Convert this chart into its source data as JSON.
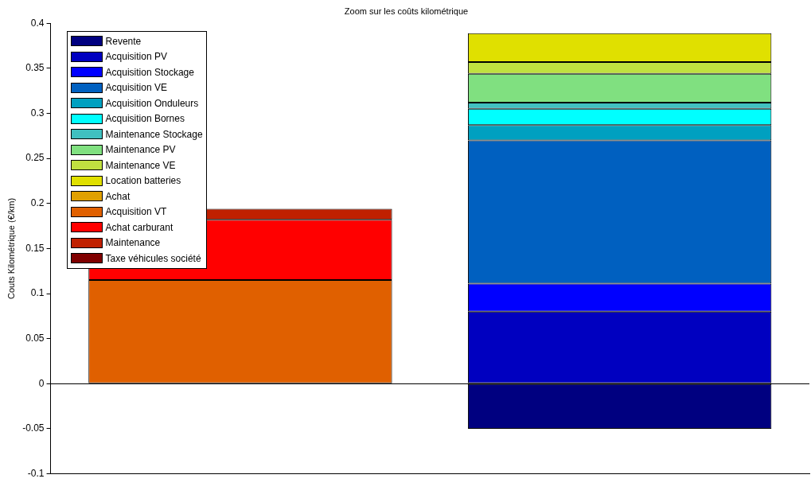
{
  "chart_data": {
    "type": "bar",
    "title": "Zoom sur les coûts kilométrique",
    "ylabel": "Couts Kilométrique (€/km)",
    "categories": [
      null,
      null
    ],
    "stacked": true,
    "ylim": [
      -0.1,
      0.4
    ],
    "yticks": [
      -0.1,
      -0.05,
      0,
      0.05,
      0.1,
      0.15,
      0.2,
      0.25,
      0.3,
      0.35,
      0.4
    ],
    "grid": false,
    "legend": "top left",
    "ref_lines": [
      {
        "axis": "y",
        "value": 0,
        "color": "#000000"
      }
    ],
    "series": [
      {
        "name": "Revente",
        "color": "#000080",
        "values": [
          0,
          -0.05
        ]
      },
      {
        "name": "Acquisition PV",
        "color": "#0000c0",
        "values": [
          0,
          0.08
        ]
      },
      {
        "name": "Acquisition Stockage",
        "color": "#0000ff",
        "values": [
          0,
          0.031
        ]
      },
      {
        "name": "Acquisition VE",
        "color": "#0060c0",
        "values": [
          0,
          0.159
        ]
      },
      {
        "name": "Acquisition Onduleurs",
        "color": "#00a0c0",
        "values": [
          0,
          0.017
        ]
      },
      {
        "name": "Acquisition Bornes",
        "color": "#00ffff",
        "values": [
          0,
          0.018
        ]
      },
      {
        "name": "Maintenance Stockage",
        "color": "#40c0c0",
        "values": [
          0,
          0.007
        ]
      },
      {
        "name": "Maintenance PV",
        "color": "#80e080",
        "values": [
          0,
          0.032
        ]
      },
      {
        "name": "Maintenance VE",
        "color": "#c0e040",
        "values": [
          0,
          0.013
        ]
      },
      {
        "name": "Location batteries",
        "color": "#e0e000",
        "values": [
          0,
          0.032
        ]
      },
      {
        "name": "Achat",
        "color": "#e0a000",
        "values": [
          0,
          0
        ]
      },
      {
        "name": "Acquisition VT",
        "color": "#e06000",
        "values": [
          0.115,
          0
        ]
      },
      {
        "name": "Achat carburant",
        "color": "#ff0000",
        "values": [
          0.067,
          0
        ]
      },
      {
        "name": "Maintenance",
        "color": "#c02000",
        "values": [
          0.012,
          0
        ]
      },
      {
        "name": "Taxe véhicules société",
        "color": "#800000",
        "values": [
          0,
          0
        ]
      }
    ]
  }
}
